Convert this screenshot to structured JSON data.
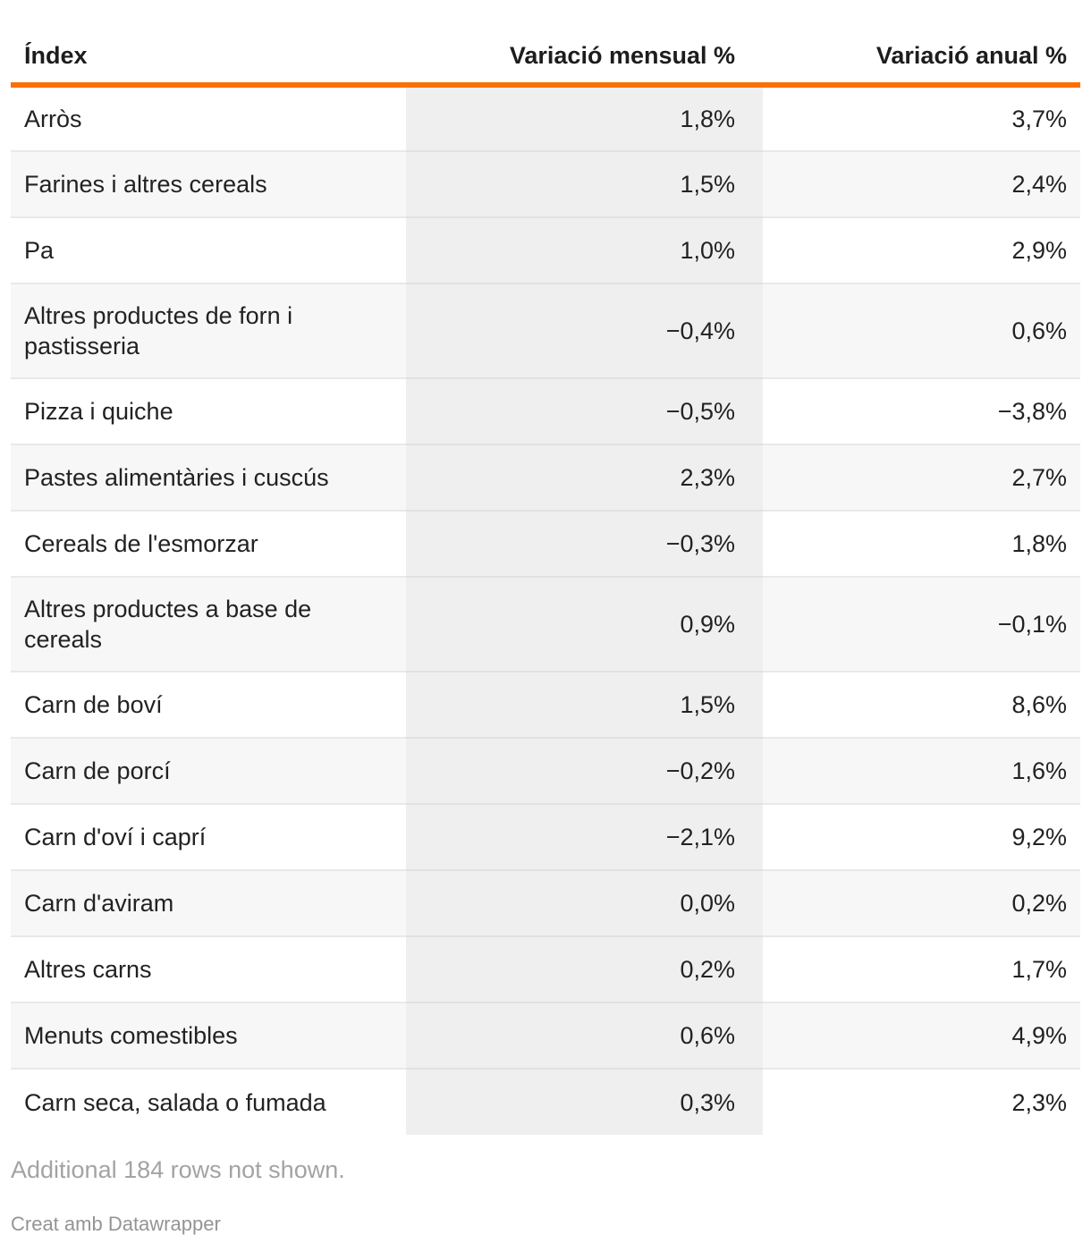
{
  "table": {
    "columns": [
      {
        "label": "Índex",
        "align": "left"
      },
      {
        "label": "Variació mensual %",
        "align": "right"
      },
      {
        "label": "Variació anual %",
        "align": "right"
      }
    ],
    "rows": [
      {
        "index": "Arròs",
        "monthly": "1,8%",
        "annual": "3,7%"
      },
      {
        "index": "Farines i altres cereals",
        "monthly": "1,5%",
        "annual": "2,4%"
      },
      {
        "index": "Pa",
        "monthly": "1,0%",
        "annual": "2,9%"
      },
      {
        "index": "Altres productes de forn i pastisseria",
        "monthly": "−0,4%",
        "annual": "0,6%"
      },
      {
        "index": "Pizza i quiche",
        "monthly": "−0,5%",
        "annual": "−3,8%"
      },
      {
        "index": "Pastes alimentàries i cuscús",
        "monthly": "2,3%",
        "annual": "2,7%"
      },
      {
        "index": "Cereals de l'esmorzar",
        "monthly": "−0,3%",
        "annual": "1,8%"
      },
      {
        "index": "Altres productes a base de cereals",
        "monthly": "0,9%",
        "annual": "−0,1%"
      },
      {
        "index": "Carn de boví",
        "monthly": "1,5%",
        "annual": "8,6%"
      },
      {
        "index": "Carn de porcí",
        "monthly": "−0,2%",
        "annual": "1,6%"
      },
      {
        "index": "Carn d'oví i caprí",
        "monthly": "−2,1%",
        "annual": "9,2%"
      },
      {
        "index": "Carn d'aviram",
        "monthly": "0,0%",
        "annual": "0,2%"
      },
      {
        "index": "Altres carns",
        "monthly": "0,2%",
        "annual": "1,7%"
      },
      {
        "index": "Menuts comestibles",
        "monthly": "0,6%",
        "annual": "4,9%"
      },
      {
        "index": "Carn seca, salada o fumada",
        "monthly": "0,3%",
        "annual": "2,3%"
      }
    ]
  },
  "footer": {
    "note": "Additional 184 rows not shown.",
    "attribution": "Creat amb Datawrapper"
  },
  "colors": {
    "accent_rule": "#fa7005",
    "zebra_row": "#f7f7f7",
    "monthly_column_bg": "#efefef",
    "row_divider": "#e9e9e9",
    "body_text": "#222222",
    "header_text": "#1d1d1d",
    "note_text": "#a3a3a3",
    "attribution_text": "#949494"
  },
  "chart_data": {
    "type": "table",
    "title": "",
    "columns": [
      "Índex",
      "Variació mensual %",
      "Variació anual %"
    ],
    "rows": [
      [
        "Arròs",
        1.8,
        3.7
      ],
      [
        "Farines i altres cereals",
        1.5,
        2.4
      ],
      [
        "Pa",
        1.0,
        2.9
      ],
      [
        "Altres productes de forn i pastisseria",
        -0.4,
        0.6
      ],
      [
        "Pizza i quiche",
        -0.5,
        -3.8
      ],
      [
        "Pastes alimentàries i cuscús",
        2.3,
        2.7
      ],
      [
        "Cereals de l'esmorzar",
        -0.3,
        1.8
      ],
      [
        "Altres productes a base de cereals",
        0.9,
        -0.1
      ],
      [
        "Carn de boví",
        1.5,
        8.6
      ],
      [
        "Carn de porcí",
        -0.2,
        1.6
      ],
      [
        "Carn d'oví i caprí",
        -2.1,
        9.2
      ],
      [
        "Carn d'aviram",
        0.0,
        0.2
      ],
      [
        "Altres carns",
        0.2,
        1.7
      ],
      [
        "Menuts comestibles",
        0.6,
        4.9
      ],
      [
        "Carn seca, salada o fumada",
        0.3,
        2.3
      ]
    ],
    "number_format": "one decimal, comma as decimal separator, % suffix, U+2212 minus",
    "layout_hints": {
      "zebra_striping": true,
      "monthly_column_shaded": true,
      "header_rule_color": "#fa7005",
      "truncated_rows_note": "Additional 184 rows not shown."
    }
  }
}
